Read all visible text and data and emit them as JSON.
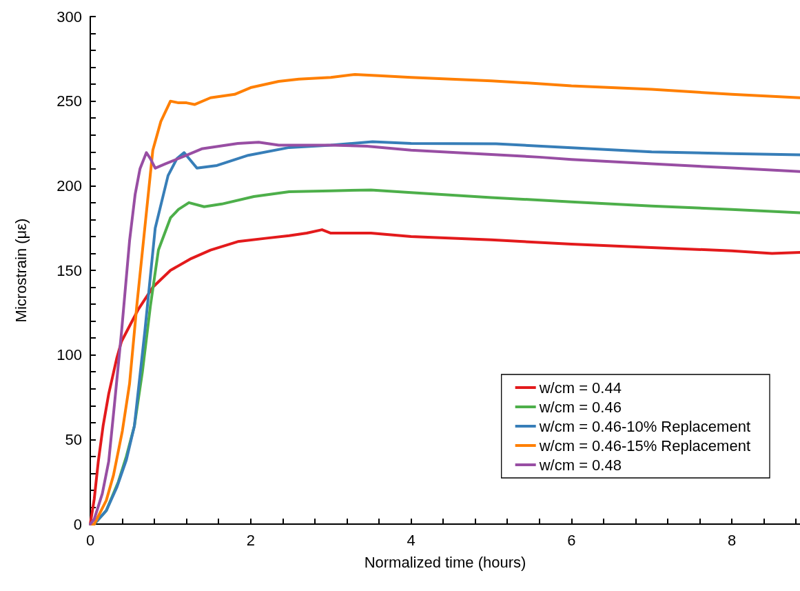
{
  "chart_data": {
    "type": "line",
    "xlabel": "Normalized time (hours)",
    "ylabel": "Microstrain (με)",
    "xlim": [
      0,
      8.85
    ],
    "ylim": [
      0,
      300
    ],
    "xticks": [
      0,
      {
        "value": 0.4,
        "label": null
      },
      {
        "value": 0.8,
        "label": null
      },
      {
        "value": 1.2,
        "label": null
      },
      {
        "value": 1.6,
        "label": null
      },
      2,
      {
        "value": 2.4,
        "label": null
      },
      {
        "value": 2.8,
        "label": null
      },
      {
        "value": 3.2,
        "label": null
      },
      {
        "value": 3.6,
        "label": null
      },
      4,
      {
        "value": 4.4,
        "label": null
      },
      {
        "value": 4.8,
        "label": null
      },
      {
        "value": 5.2,
        "label": null
      },
      {
        "value": 5.6,
        "label": null
      },
      6,
      {
        "value": 6.4,
        "label": null
      },
      {
        "value": 6.8,
        "label": null
      },
      {
        "value": 7.2,
        "label": null
      },
      {
        "value": 7.6,
        "label": null
      },
      8,
      {
        "value": 8.4,
        "label": null
      },
      {
        "value": 8.8,
        "label": null
      }
    ],
    "yticks": [
      0,
      {
        "value": 10,
        "label": null
      },
      {
        "value": 20,
        "label": null
      },
      {
        "value": 30,
        "label": null
      },
      {
        "value": 40,
        "label": null
      },
      50,
      {
        "value": 60,
        "label": null
      },
      {
        "value": 70,
        "label": null
      },
      {
        "value": 80,
        "label": null
      },
      {
        "value": 90,
        "label": null
      },
      100,
      {
        "value": 110,
        "label": null
      },
      {
        "value": 120,
        "label": null
      },
      {
        "value": 130,
        "label": null
      },
      {
        "value": 140,
        "label": null
      },
      150,
      {
        "value": 160,
        "label": null
      },
      {
        "value": 170,
        "label": null
      },
      {
        "value": 180,
        "label": null
      },
      {
        "value": 190,
        "label": null
      },
      200,
      {
        "value": 210,
        "label": null
      },
      {
        "value": 220,
        "label": null
      },
      {
        "value": 230,
        "label": null
      },
      {
        "value": 240,
        "label": null
      },
      250,
      {
        "value": 260,
        "label": null
      },
      {
        "value": 270,
        "label": null
      },
      {
        "value": 280,
        "label": null
      },
      {
        "value": 290,
        "label": null
      },
      300
    ],
    "grid": false,
    "legend": "bottom right",
    "marker": "none",
    "line_style": "solid",
    "series": [
      {
        "name": "w/cm = 0.44",
        "color": "#e31a1c",
        "x": [
          0,
          0.05,
          0.1,
          0.16,
          0.23,
          0.33,
          0.39,
          0.5,
          0.6,
          0.78,
          1.0,
          1.26,
          1.5,
          1.84,
          2.2,
          2.48,
          2.7,
          2.89,
          3.0,
          3.5,
          4.0,
          5.0,
          6.0,
          7.0,
          8.0,
          8.5,
          8.85
        ],
        "values": [
          0,
          15,
          37,
          58,
          77,
          98,
          108,
          118,
          127,
          140,
          150,
          157,
          162,
          167,
          169,
          170.5,
          172,
          174,
          172,
          172,
          170,
          168,
          165.5,
          163.5,
          161.5,
          160,
          160.6
        ]
      },
      {
        "name": "w/cm = 0.46",
        "color": "#4daf4a",
        "x": [
          0,
          0.05,
          0.2,
          0.35,
          0.45,
          0.55,
          0.65,
          0.75,
          0.85,
          1.0,
          1.1,
          1.23,
          1.42,
          1.64,
          2.04,
          2.48,
          3.0,
          3.5,
          4.0,
          5.0,
          6.0,
          7.0,
          8.0,
          8.85
        ],
        "values": [
          0,
          0,
          8,
          25,
          40,
          58,
          90,
          129,
          162,
          181,
          186,
          190,
          187.6,
          189.2,
          193.6,
          196.5,
          197,
          197.5,
          196,
          193,
          190.5,
          188,
          186,
          184
        ]
      },
      {
        "name": "w/cm = 0.46-10% Replacement",
        "color": "#377eb8",
        "x": [
          0,
          0.05,
          0.2,
          0.33,
          0.45,
          0.55,
          0.68,
          0.81,
          0.97,
          1.08,
          1.17,
          1.25,
          1.33,
          1.58,
          1.97,
          2.48,
          3.0,
          3.52,
          4.0,
          5.06,
          6.0,
          7.0,
          8.0,
          8.85
        ],
        "values": [
          0,
          0,
          8,
          21.6,
          38,
          58,
          113.7,
          175,
          206,
          216,
          219.6,
          215,
          210.4,
          212,
          218,
          222.6,
          224,
          226,
          225,
          224.8,
          222.5,
          220,
          219,
          218.3
        ]
      },
      {
        "name": "w/cm = 0.46-15% Replacement",
        "color": "#ff7f00",
        "x": [
          0,
          0.05,
          0.2,
          0.29,
          0.4,
          0.49,
          0.58,
          0.68,
          0.78,
          0.88,
          1.0,
          1.1,
          1.2,
          1.3,
          1.5,
          1.8,
          2.0,
          2.35,
          2.6,
          3.0,
          3.3,
          3.6,
          4.0,
          5.0,
          5.55,
          6.0,
          7.0,
          8.0,
          8.85
        ],
        "values": [
          0,
          0,
          14,
          29,
          55,
          83,
          129,
          175,
          221,
          238,
          250,
          249,
          249,
          248,
          252,
          254,
          258,
          261.7,
          263,
          264,
          265.8,
          265,
          264,
          262,
          260.5,
          259,
          257,
          254,
          252
        ]
      },
      {
        "name": "w/cm = 0.48",
        "color": "#984ea3",
        "x": [
          0,
          0.05,
          0.15,
          0.23,
          0.3,
          0.39,
          0.49,
          0.56,
          0.62,
          0.7,
          0.75,
          0.81,
          0.93,
          1.2,
          1.39,
          1.84,
          2.1,
          2.35,
          3.0,
          3.45,
          4.0,
          5.0,
          5.6,
          6.0,
          7.0,
          8.0,
          8.85
        ],
        "values": [
          0,
          3,
          18,
          37,
          70,
          113.7,
          167.5,
          195,
          210,
          219.6,
          216,
          210.4,
          212.8,
          218,
          221.8,
          225,
          225.7,
          224,
          224,
          223.4,
          221,
          218.5,
          216.9,
          215.5,
          213,
          210.5,
          208.4
        ]
      }
    ]
  }
}
